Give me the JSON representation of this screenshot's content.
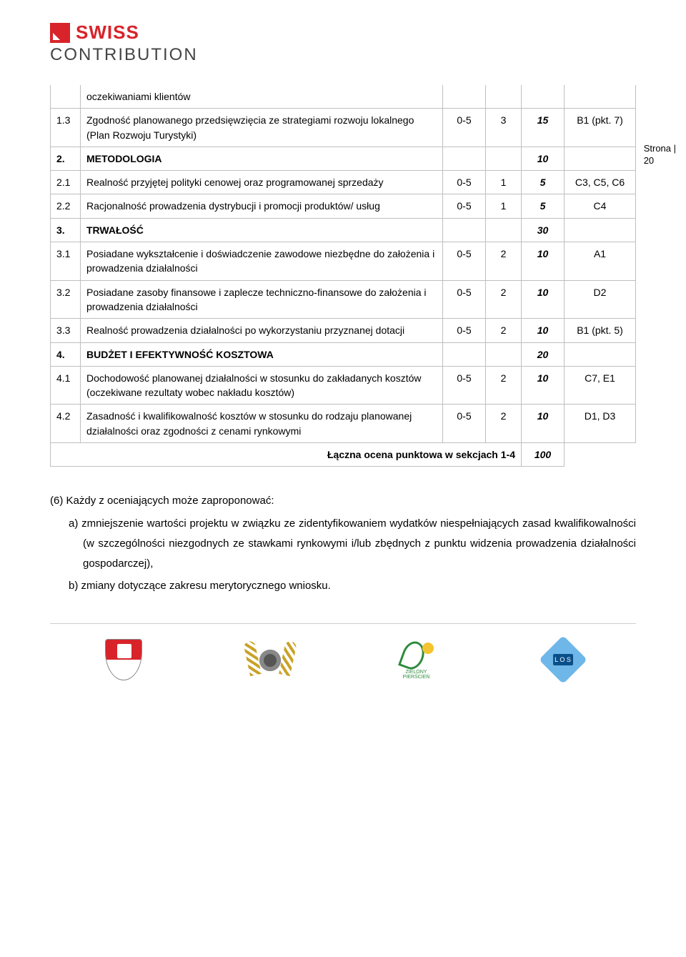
{
  "logo": {
    "line1": "SWISS",
    "line2": "CONTRIBUTION"
  },
  "sideLabel": {
    "text": "Strona |",
    "num": "20"
  },
  "table": {
    "rows": [
      {
        "num": "",
        "desc": "oczekiwaniami klientów",
        "range": "",
        "weight": "",
        "points": "",
        "ref": "",
        "cls": "continuation"
      },
      {
        "num": "1.3",
        "desc": "Zgodność planowanego przedsięwzięcia ze strategiami rozwoju lokalnego (Plan Rozwoju Turystyki)",
        "range": "0-5",
        "weight": "3",
        "points": "15",
        "ref": "B1 (pkt. 7)",
        "pointsItalic": true
      },
      {
        "num": "2.",
        "desc": "METODOLOGIA",
        "range": "",
        "weight": "",
        "points": "10",
        "ref": "",
        "bold": true,
        "pointsItalic": true
      },
      {
        "num": "2.1",
        "desc": "Realność przyjętej polityki cenowej oraz programowanej sprzedaży",
        "range": "0-5",
        "weight": "1",
        "points": "5",
        "ref": "C3, C5, C6",
        "pointsItalic": true
      },
      {
        "num": "2.2",
        "desc": "Racjonalność prowadzenia dystrybucji i promocji produktów/ usług",
        "range": "0-5",
        "weight": "1",
        "points": "5",
        "ref": "C4",
        "pointsItalic": true
      },
      {
        "num": "3.",
        "desc": "TRWAŁOŚĆ",
        "range": "",
        "weight": "",
        "points": "30",
        "ref": "",
        "bold": true,
        "pointsItalic": true
      },
      {
        "num": "3.1",
        "desc": "Posiadane wykształcenie i doświadczenie zawodowe niezbędne do założenia i prowadzenia działalności",
        "range": "0-5",
        "weight": "2",
        "points": "10",
        "ref": "A1",
        "pointsItalic": true
      },
      {
        "num": "3.2",
        "desc": "Posiadane zasoby finansowe i zaplecze techniczno-finansowe do założenia i prowadzenia działalności",
        "range": "0-5",
        "weight": "2",
        "points": "10",
        "ref": "D2",
        "pointsItalic": true
      },
      {
        "num": "3.3",
        "desc": "Realność prowadzenia działalności po wykorzystaniu przyznanej dotacji",
        "range": "0-5",
        "weight": "2",
        "points": "10",
        "ref": "B1 (pkt. 5)",
        "pointsItalic": true
      },
      {
        "num": "4.",
        "desc": "BUDŻET I EFEKTYWNOŚĆ KOSZTOWA",
        "range": "",
        "weight": "",
        "points": "20",
        "ref": "",
        "bold": true,
        "pointsItalic": true
      },
      {
        "num": "4.1",
        "desc": "Dochodowość planowanej działalności w stosunku do zakładanych kosztów (oczekiwane rezultaty wobec nakładu kosztów)",
        "range": "0-5",
        "weight": "2",
        "points": "10",
        "ref": "C7, E1",
        "pointsItalic": true
      },
      {
        "num": "4.2",
        "desc": "Zasadność i kwalifikowalność kosztów w stosunku do rodzaju planowanej działalności oraz zgodności z cenami rynkowymi",
        "range": "0-5",
        "weight": "2",
        "points": "10",
        "ref": "D1, D3",
        "pointsItalic": true
      }
    ],
    "summary": {
      "label": "Łączna ocena punktowa w sekcjach 1-4",
      "total": "100"
    }
  },
  "body": {
    "intro": "(6) Każdy z oceniających może zaproponować:",
    "a": "a)  zmniejszenie wartości projektu w związku ze zidentyfikowaniem wydatków niespełniających zasad kwalifikowalności (w szczególności niezgodnych ze stawkami rynkowymi i/lub zbędnych z punktu widzenia prowadzenia działalności gospodarczej),",
    "b": "b)  zmiany dotyczące zakresu merytorycznego wniosku."
  },
  "footer": {
    "greenText": "ZIELONY PIERŚCIEŃ",
    "diamondText": "L O S"
  },
  "colors": {
    "brandRed": "#d8232a",
    "border": "#bfbfbf",
    "text": "#000000",
    "background": "#ffffff"
  }
}
